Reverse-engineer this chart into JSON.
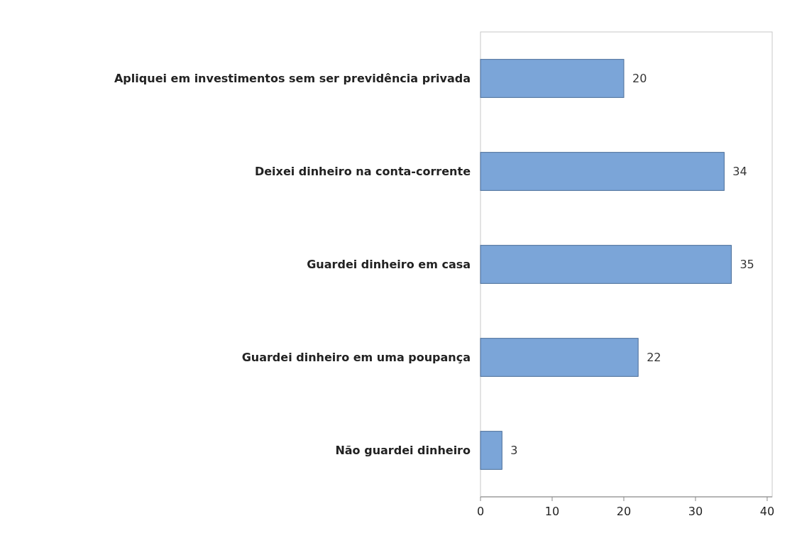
{
  "chart_data": {
    "type": "bar",
    "orientation": "horizontal",
    "categories": [
      "Apliquei em investimentos sem ser previdência privada",
      "Deixei dinheiro na conta-corrente",
      "Guardei dinheiro em casa",
      "Guardei dinheiro em uma poupança",
      "Não guardei dinheiro"
    ],
    "values": [
      20,
      34,
      35,
      22,
      3
    ],
    "color": "#7ba5d8",
    "data_labels": true,
    "xlim": [
      0,
      40.7
    ],
    "xticks": [
      0,
      10,
      20,
      30,
      40
    ],
    "grid": false
  }
}
